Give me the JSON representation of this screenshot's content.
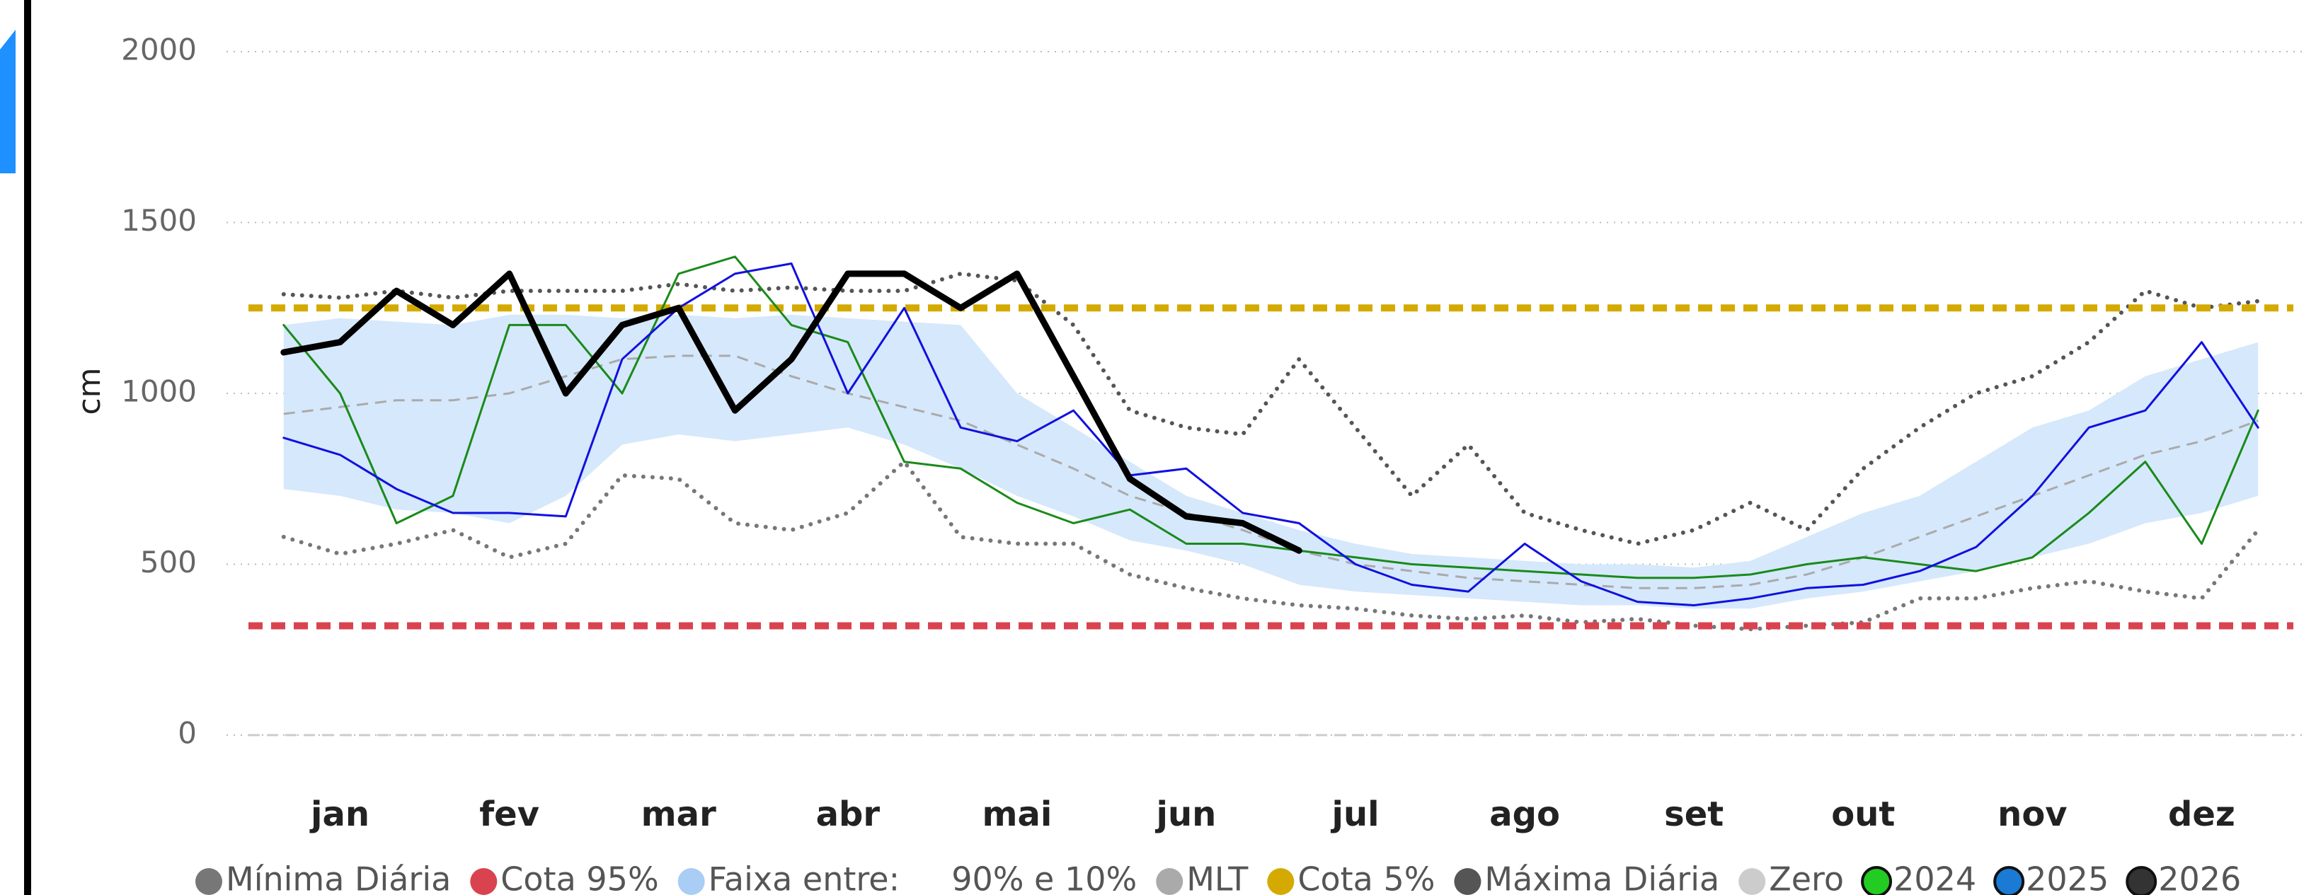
{
  "chart_data": {
    "type": "line",
    "y_label": "cm",
    "categories": [
      null,
      "jan",
      null,
      null,
      "fev",
      null,
      null,
      "mar",
      null,
      null,
      "abr",
      null,
      null,
      "mai",
      null,
      null,
      "jun",
      null,
      null,
      "jul",
      null,
      null,
      "ago",
      null,
      null,
      "set",
      null,
      null,
      "out",
      null,
      null,
      "nov",
      null,
      null,
      "dez",
      null
    ],
    "ylim": [
      0,
      2000
    ],
    "yticks": [
      0,
      500,
      1000,
      1500,
      2000
    ],
    "grid": true,
    "series": [
      {
        "name": "Mínima Diária",
        "color": "#777777",
        "style": "dotted",
        "values": [
          580,
          530,
          560,
          600,
          520,
          560,
          760,
          750,
          620,
          600,
          650,
          800,
          580,
          560,
          560,
          470,
          430,
          400,
          380,
          370,
          350,
          340,
          350,
          330,
          340,
          320,
          310,
          320,
          330,
          400,
          400,
          430,
          450,
          420,
          400,
          600
        ]
      },
      {
        "name": "Cota 95%",
        "color": "#d9434f",
        "style": "dashed",
        "value": 320
      },
      {
        "name": "Faixa entre:     90% e 10%",
        "color": "#d6e8fb",
        "legend_color": "#a9cdf5",
        "style": "band",
        "upper": [
          1200,
          1220,
          1210,
          1200,
          1230,
          1230,
          1220,
          1230,
          1220,
          1230,
          1220,
          1210,
          1200,
          1000,
          900,
          800,
          700,
          650,
          600,
          560,
          530,
          520,
          510,
          500,
          500,
          490,
          510,
          580,
          650,
          700,
          800,
          900,
          950,
          1050,
          1100,
          1150
        ],
        "lower": [
          720,
          700,
          660,
          650,
          620,
          700,
          850,
          880,
          860,
          880,
          900,
          850,
          780,
          700,
          640,
          570,
          540,
          500,
          440,
          420,
          410,
          400,
          390,
          380,
          380,
          370,
          370,
          400,
          420,
          450,
          480,
          520,
          560,
          620,
          650,
          700
        ]
      },
      {
        "name": "MLT",
        "color": "#aaaaaa",
        "style": "mlt",
        "values": [
          940,
          960,
          980,
          980,
          1000,
          1050,
          1100,
          1110,
          1110,
          1050,
          1000,
          960,
          920,
          850,
          780,
          700,
          650,
          600,
          540,
          500,
          480,
          460,
          450,
          440,
          430,
          430,
          440,
          470,
          520,
          580,
          640,
          700,
          760,
          820,
          860,
          920
        ]
      },
      {
        "name": "Cota 5%",
        "color": "#d4aa00",
        "style": "dashed",
        "value": 1250
      },
      {
        "name": "Máxima Diária",
        "color": "#555555",
        "style": "dotted",
        "values": [
          1290,
          1280,
          1300,
          1280,
          1300,
          1300,
          1300,
          1320,
          1300,
          1310,
          1300,
          1300,
          1350,
          1330,
          1200,
          950,
          900,
          880,
          1100,
          900,
          700,
          850,
          650,
          600,
          560,
          600,
          680,
          600,
          780,
          900,
          1000,
          1050,
          1150,
          1300,
          1250,
          1270
        ]
      },
      {
        "name": "Zero",
        "color": "#cccccc",
        "style": "zero",
        "value": 0
      },
      {
        "name": "2024",
        "color": "#1a8a1a",
        "legend_color": "#22cc22",
        "style": "solid",
        "values": [
          1200,
          1000,
          620,
          700,
          1200,
          1200,
          1000,
          1350,
          1400,
          1200,
          1150,
          800,
          780,
          680,
          620,
          660,
          560,
          560,
          540,
          520,
          500,
          490,
          480,
          470,
          460,
          460,
          470,
          500,
          520,
          500,
          480,
          520,
          650,
          800,
          560,
          950
        ]
      },
      {
        "name": "2025",
        "color": "#1010e0",
        "legend_color": "#1a7ad4",
        "style": "solid",
        "values": [
          870,
          820,
          720,
          650,
          650,
          640,
          1100,
          1250,
          1350,
          1380,
          1000,
          1250,
          900,
          860,
          950,
          760,
          780,
          650,
          620,
          500,
          440,
          420,
          560,
          450,
          390,
          380,
          400,
          430,
          440,
          480,
          550,
          700,
          900,
          950,
          1150,
          900
        ]
      },
      {
        "name": "2026",
        "color": "#000000",
        "legend_color": "#333333",
        "style": "thick",
        "values": [
          1120,
          1150,
          1300,
          1200,
          1350,
          1000,
          1200,
          1250,
          950,
          1100,
          1350,
          1350,
          1250,
          1350,
          1050,
          750,
          640,
          620,
          540,
          null,
          null,
          null,
          null,
          null,
          null,
          null,
          null,
          null,
          null,
          null,
          null,
          null,
          null,
          null,
          null,
          null
        ]
      }
    ]
  }
}
